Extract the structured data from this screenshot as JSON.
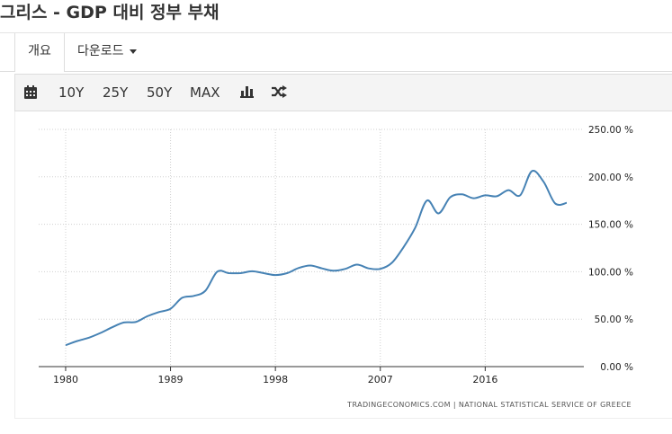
{
  "page": {
    "title": "그리스 - GDP 대비 정부 부채"
  },
  "tabs": [
    {
      "label": "개요"
    },
    {
      "label": "다운로드"
    }
  ],
  "toolbar": {
    "ranges": [
      "10Y",
      "25Y",
      "50Y",
      "MAX"
    ],
    "icons": [
      "calendar-icon",
      "bar-chart-icon",
      "shuffle-icon"
    ]
  },
  "colors": {
    "line": "#4682b4",
    "grid": "#d0d0d0",
    "axis": "#333333"
  },
  "chart_data": {
    "type": "line",
    "x": [
      1980.0,
      1981.0,
      1982.0,
      1983.0,
      1984.0,
      1985.0,
      1986.0,
      1987.0,
      1988.0,
      1989.0,
      1990.0,
      1991.0,
      1992.0,
      1993.0,
      1994.0,
      1995.0,
      1996.0,
      1997.0,
      1998.0,
      1999.0,
      2000.0,
      2001.0,
      2002.0,
      2003.0,
      2004.0,
      2005.0,
      2006.0,
      2007.0,
      2008.0,
      2009.0,
      2010.0,
      2011.0,
      2012.0,
      2013.0,
      2014.0,
      2015.0,
      2016.0,
      2017.0,
      2018.0,
      2019.0,
      2020.0,
      2021.0,
      2022.0,
      2023.0
    ],
    "series": [
      {
        "values": [
          22.5,
          27.0,
          30.5,
          35.5,
          41.5,
          46.5,
          47.0,
          53.0,
          57.5,
          61.0,
          72.5,
          74.5,
          80.0,
          100.0,
          98.5,
          98.5,
          100.5,
          98.5,
          96.5,
          98.5,
          104.0,
          106.5,
          103.5,
          101.0,
          103.0,
          107.5,
          103.5,
          103.0,
          109.5,
          126.0,
          146.5,
          175.0,
          161.5,
          178.5,
          181.5,
          177.5,
          180.5,
          179.5,
          186.0,
          180.5,
          206.0,
          195.0,
          172.0,
          172.5
        ]
      }
    ],
    "x_ticks": [
      "1980",
      "1989",
      "1998",
      "2007",
      "2016"
    ],
    "x_tick_values": [
      1980,
      1989,
      1998,
      2007,
      2016
    ],
    "y_ticks": [
      "250.00 %",
      "200.00 %",
      "150.00 %",
      "100.00 %",
      "50.00 %",
      "0.00 %"
    ],
    "y_tick_values": [
      250,
      200,
      150,
      100,
      50,
      0
    ],
    "ylim": [
      0,
      250
    ],
    "xlim": [
      1979.0,
      2024.0
    ],
    "grid": true,
    "source": "TRADINGECONOMICS.COM  |  NATIONAL STATISTICAL SERVICE OF GREECE"
  }
}
